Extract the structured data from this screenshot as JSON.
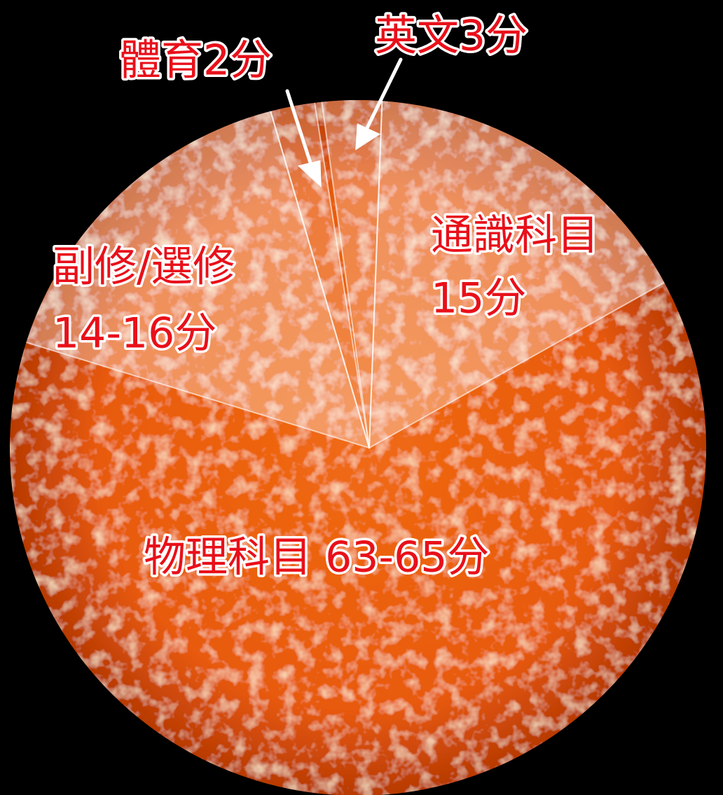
{
  "labels": [
    {
      "lines": [
        "體育2分"
      ]
    },
    {
      "lines": [
        "英文3分"
      ]
    },
    {
      "lines": [
        "通識科目",
        "15分"
      ]
    },
    {
      "lines": [
        "副修/選修",
        "14-16分"
      ]
    },
    {
      "lines": [
        "物理科目 63-65分"
      ]
    }
  ]
}
